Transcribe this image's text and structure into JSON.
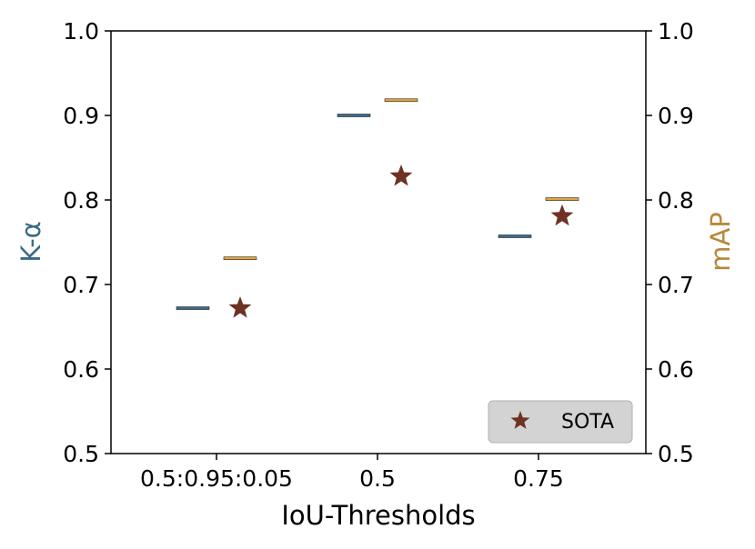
{
  "chart_data": {
    "type": "box",
    "categories": [
      "0.5:0.95:0.05",
      "0.5",
      "0.75"
    ],
    "xlabel": "IoU-Thresholds",
    "ylabel_left": "K-α",
    "ylabel_right": "mAP",
    "ylim_left": [
      0.5,
      1.0
    ],
    "ylim_right": [
      0.5,
      1.0
    ],
    "yticks": [
      "0.5",
      "0.6",
      "0.7",
      "0.8",
      "0.9",
      "1.0"
    ],
    "series": [
      {
        "axis": "left",
        "color": "#3d6b8a",
        "values": [
          0.672,
          0.9,
          0.757
        ]
      },
      {
        "axis": "right",
        "color": "#e3a53d",
        "values": [
          0.731,
          0.918,
          0.801
        ]
      },
      {
        "name": "SOTA",
        "marker": "star",
        "axis": "right",
        "color": "#6e3124",
        "values": [
          0.672,
          0.828,
          0.781
        ]
      }
    ],
    "legend": {
      "position": "bottom-right",
      "entries": [
        "SOTA"
      ]
    },
    "colors": {
      "left_axis_label": "#3a6a86",
      "right_axis_label": "#b8873c",
      "legend_background": "#d3d3d3"
    },
    "grid": false
  }
}
